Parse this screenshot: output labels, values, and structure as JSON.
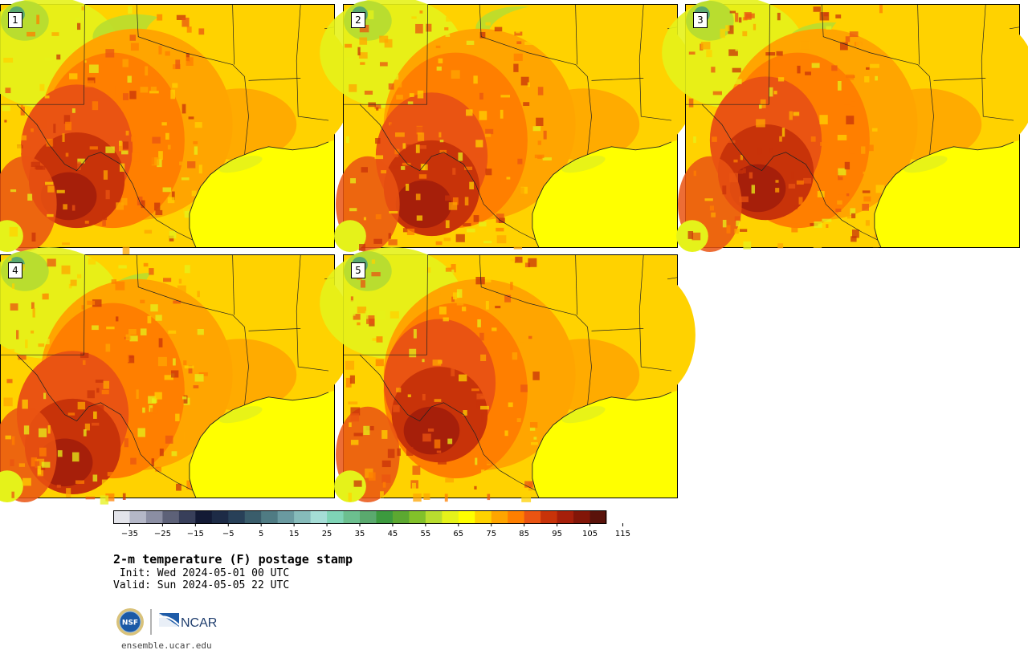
{
  "title": "2-m temperature (F) postage stamp",
  "init_line": " Init: Wed 2024-05-01 00 UTC",
  "valid_line": "Valid: Sun 2024-05-05 22 UTC",
  "website": "ensemble.ucar.edu",
  "logos": {
    "nsf": "NSF",
    "ncar": "NCAR"
  },
  "panels": [
    {
      "label": "1"
    },
    {
      "label": "2"
    },
    {
      "label": "3"
    },
    {
      "label": "4"
    },
    {
      "label": "5"
    }
  ],
  "colorbar": {
    "variable": "2-m temperature (F)",
    "min": -35,
    "step": 5,
    "tick_labels": [
      "−35",
      "−25",
      "−15",
      "−5",
      "5",
      "15",
      "25",
      "35",
      "45",
      "55",
      "65",
      "75",
      "85",
      "95",
      "105",
      "115"
    ],
    "colors": [
      "#e3e4ea",
      "#b4b7c7",
      "#8b8ea3",
      "#5d6178",
      "#383f5a",
      "#131a35",
      "#1d2b46",
      "#284058",
      "#3a5d6b",
      "#4f7b83",
      "#6a9aa0",
      "#86bbba",
      "#a5ddd6",
      "#7fd4b6",
      "#6cbf8f",
      "#5aa96e",
      "#3c9a3e",
      "#5ca831",
      "#82c12a",
      "#b9dd2f",
      "#e5f21a",
      "#ffff00",
      "#ffd200",
      "#ffa500",
      "#ff7f00",
      "#ea5412",
      "#c83309",
      "#a61f0a",
      "#821608",
      "#5a120a"
    ]
  },
  "map_colors": {
    "gulf": "#ffff00",
    "tier_60": "#b9dd2f",
    "tier_70": "#e5f21a",
    "tier_80": "#ffd200",
    "tier_90": "#ffa500",
    "tier_95": "#ff7f00",
    "tier_100": "#ea5412",
    "tier_105": "#c83309",
    "tier_110": "#a61f0a",
    "green_hills": "#5aa96e"
  }
}
